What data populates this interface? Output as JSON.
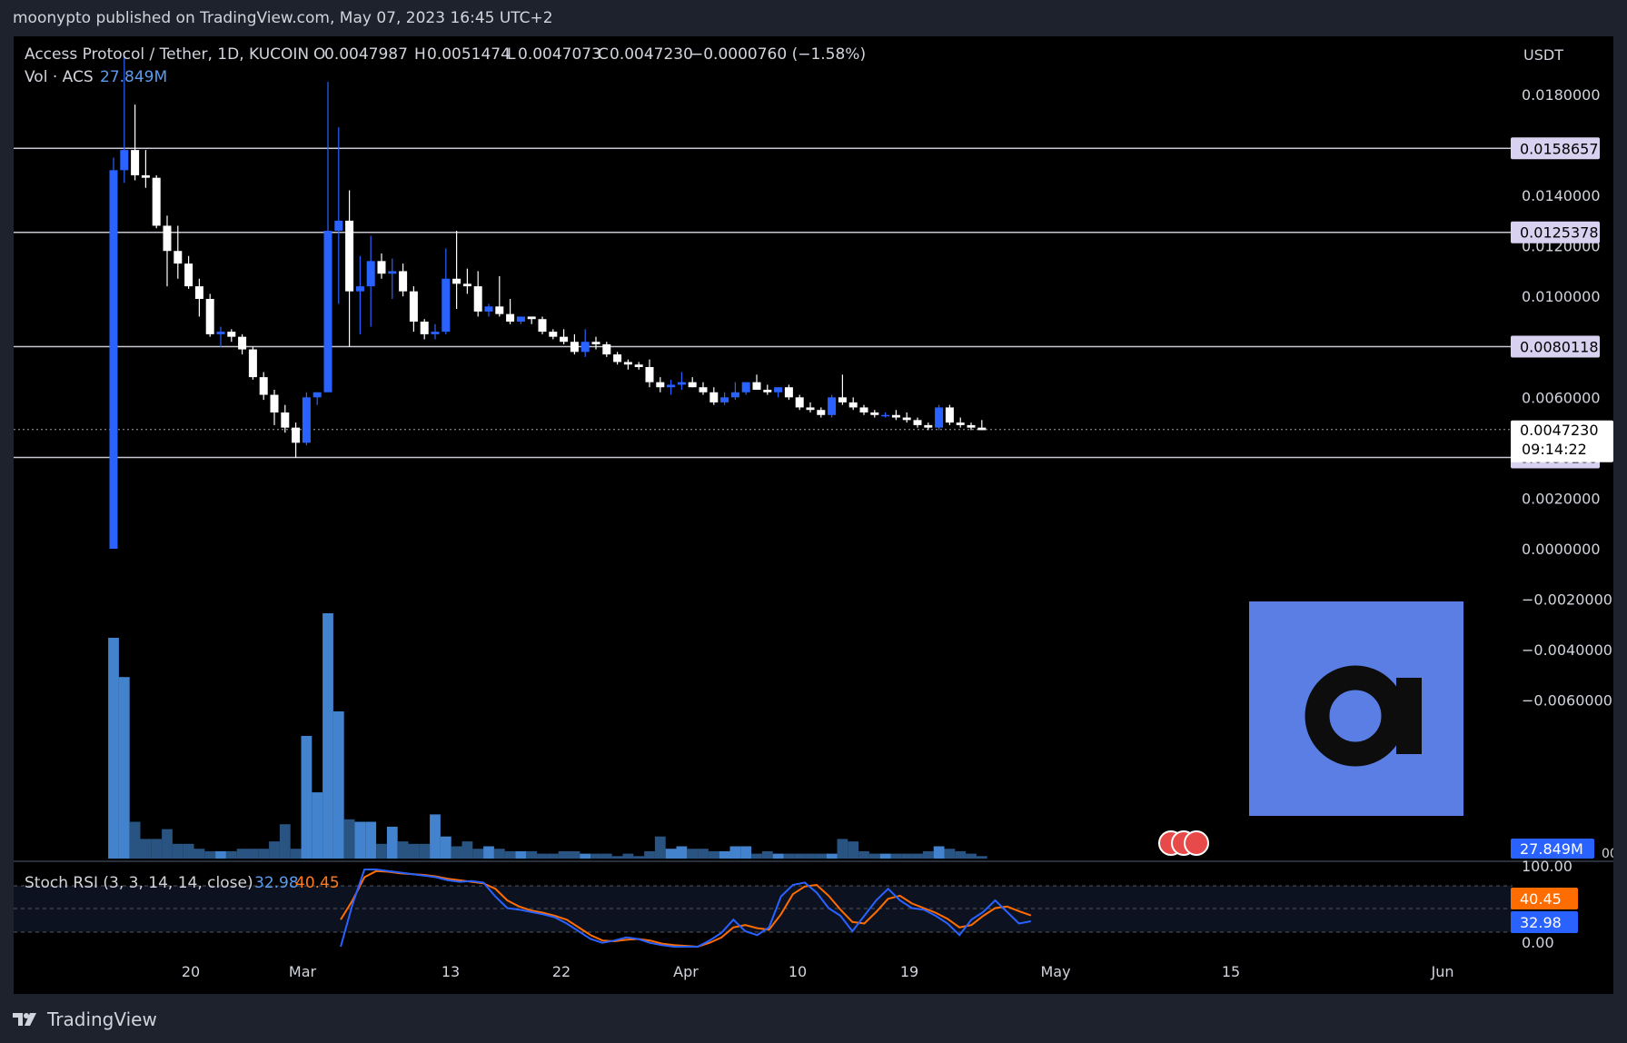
{
  "header": {
    "publisher_line": "moonypto published on TradingView.com, May 07, 2023 16:45 UTC+2"
  },
  "legend": {
    "symbol": "Access Protocol / Tether, 1D, KUCOIN",
    "o_label": "O",
    "o": "0.0047987",
    "h_label": "H",
    "h": "0.0051474",
    "l_label": "L",
    "l": "0.0047073",
    "c_label": "C",
    "c": "0.0047230",
    "change": "−0.0000760 (−1.58%)",
    "vol_label": "Vol · ACS",
    "vol_value": "27.849M"
  },
  "currency": "USDT",
  "price_axis": {
    "ticks": [
      "0.0180000",
      "0.0140000",
      "0.0120000",
      "0.0100000",
      "0.0060000",
      "0.0020000",
      "0.0000000",
      "−0.0020000",
      "−0.0040000",
      "−0.0060000"
    ],
    "tick_values": [
      0.018,
      0.014,
      0.012,
      0.01,
      0.006,
      0.002,
      0.0,
      -0.002,
      -0.004,
      -0.006
    ]
  },
  "hlines": [
    {
      "label": "0.0158657",
      "value": 0.0158657
    },
    {
      "label": "0.0125378",
      "value": 0.0125378
    },
    {
      "label": "0.0080118",
      "value": 0.0080118
    },
    {
      "label": "0.0036189",
      "value": 0.0036189
    }
  ],
  "last_price": {
    "label": "0.0047230",
    "value": 0.004723,
    "countdown": "09:14:22"
  },
  "volume_badge": "27.849M",
  "volume_axis_partial": "00",
  "stoch": {
    "title": "Stoch RSI (3, 3, 14, 14, close)",
    "k_label": "32.98",
    "d_label": "40.45",
    "ticks": [
      "100.00",
      "0.00"
    ],
    "k_color": "#2962ff",
    "d_color": "#ff6d00"
  },
  "time_axis": [
    "20",
    "Mar",
    "13",
    "22",
    "Apr",
    "10",
    "19",
    "May",
    "15",
    "Jun"
  ],
  "footer": {
    "brand": "TradingView"
  },
  "colors": {
    "up": "#2962ff",
    "down": "#ffffff",
    "vol_up": "#4a90e2",
    "vol_down": "#2e5c8e",
    "logo_bg": "#5b7ee5"
  },
  "chart_data": {
    "type": "candlestick",
    "title": "Access Protocol / Tether, 1D, KUCOIN",
    "xlabel": "",
    "ylabel": "USDT",
    "ylim": [
      -0.0075,
      0.0195
    ],
    "first_date": "2023-02-15",
    "candles": [
      {
        "o": 0.0,
        "h": 0.0155,
        "l": 0.0,
        "c": 0.015
      },
      {
        "o": 0.015,
        "h": 0.0195,
        "l": 0.0145,
        "c": 0.0158
      },
      {
        "o": 0.0158,
        "h": 0.0176,
        "l": 0.0146,
        "c": 0.0148
      },
      {
        "o": 0.0148,
        "h": 0.0158,
        "l": 0.0143,
        "c": 0.0147
      },
      {
        "o": 0.0147,
        "h": 0.0148,
        "l": 0.0127,
        "c": 0.0128
      },
      {
        "o": 0.0128,
        "h": 0.0132,
        "l": 0.0104,
        "c": 0.0118
      },
      {
        "o": 0.0118,
        "h": 0.0128,
        "l": 0.0107,
        "c": 0.0113
      },
      {
        "o": 0.0113,
        "h": 0.0116,
        "l": 0.0103,
        "c": 0.0104
      },
      {
        "o": 0.0104,
        "h": 0.0107,
        "l": 0.0092,
        "c": 0.0099
      },
      {
        "o": 0.0099,
        "h": 0.0101,
        "l": 0.0084,
        "c": 0.0085
      },
      {
        "o": 0.0085,
        "h": 0.0088,
        "l": 0.008,
        "c": 0.0086
      },
      {
        "o": 0.0086,
        "h": 0.0087,
        "l": 0.0082,
        "c": 0.0084
      },
      {
        "o": 0.0084,
        "h": 0.0085,
        "l": 0.0077,
        "c": 0.0079
      },
      {
        "o": 0.0079,
        "h": 0.008,
        "l": 0.0067,
        "c": 0.0068
      },
      {
        "o": 0.0068,
        "h": 0.007,
        "l": 0.0059,
        "c": 0.0061
      },
      {
        "o": 0.0061,
        "h": 0.0063,
        "l": 0.0049,
        "c": 0.0054
      },
      {
        "o": 0.0054,
        "h": 0.0057,
        "l": 0.0046,
        "c": 0.0048
      },
      {
        "o": 0.0048,
        "h": 0.005,
        "l": 0.0036,
        "c": 0.0042
      },
      {
        "o": 0.0042,
        "h": 0.0062,
        "l": 0.0041,
        "c": 0.006
      },
      {
        "o": 0.006,
        "h": 0.0062,
        "l": 0.0057,
        "c": 0.0062
      },
      {
        "o": 0.0062,
        "h": 0.0185,
        "l": 0.0062,
        "c": 0.0126
      },
      {
        "o": 0.0126,
        "h": 0.0167,
        "l": 0.0097,
        "c": 0.013
      },
      {
        "o": 0.013,
        "h": 0.0142,
        "l": 0.008,
        "c": 0.0102
      },
      {
        "o": 0.0102,
        "h": 0.0116,
        "l": 0.0085,
        "c": 0.0104
      },
      {
        "o": 0.0104,
        "h": 0.0124,
        "l": 0.0088,
        "c": 0.0114
      },
      {
        "o": 0.0114,
        "h": 0.0117,
        "l": 0.0107,
        "c": 0.0109
      },
      {
        "o": 0.0109,
        "h": 0.0115,
        "l": 0.0099,
        "c": 0.011
      },
      {
        "o": 0.011,
        "h": 0.0113,
        "l": 0.01,
        "c": 0.0102
      },
      {
        "o": 0.0102,
        "h": 0.0104,
        "l": 0.0086,
        "c": 0.009
      },
      {
        "o": 0.009,
        "h": 0.0091,
        "l": 0.0083,
        "c": 0.0085
      },
      {
        "o": 0.0085,
        "h": 0.0089,
        "l": 0.0083,
        "c": 0.0086
      },
      {
        "o": 0.0086,
        "h": 0.0119,
        "l": 0.0085,
        "c": 0.0107
      },
      {
        "o": 0.0107,
        "h": 0.0126,
        "l": 0.0095,
        "c": 0.0105
      },
      {
        "o": 0.0105,
        "h": 0.0111,
        "l": 0.0101,
        "c": 0.0104
      },
      {
        "o": 0.0104,
        "h": 0.011,
        "l": 0.0092,
        "c": 0.0094
      },
      {
        "o": 0.0094,
        "h": 0.0097,
        "l": 0.0092,
        "c": 0.0096
      },
      {
        "o": 0.0096,
        "h": 0.0108,
        "l": 0.0092,
        "c": 0.0093
      },
      {
        "o": 0.0093,
        "h": 0.0099,
        "l": 0.0089,
        "c": 0.009
      },
      {
        "o": 0.009,
        "h": 0.0092,
        "l": 0.0089,
        "c": 0.0092
      },
      {
        "o": 0.0092,
        "h": 0.0092,
        "l": 0.0089,
        "c": 0.0091
      },
      {
        "o": 0.0091,
        "h": 0.0092,
        "l": 0.0085,
        "c": 0.0086
      },
      {
        "o": 0.0086,
        "h": 0.0087,
        "l": 0.0083,
        "c": 0.0084
      },
      {
        "o": 0.0084,
        "h": 0.0087,
        "l": 0.0081,
        "c": 0.0082
      },
      {
        "o": 0.0082,
        "h": 0.0085,
        "l": 0.0077,
        "c": 0.0078
      },
      {
        "o": 0.0078,
        "h": 0.0087,
        "l": 0.0076,
        "c": 0.0082
      },
      {
        "o": 0.0082,
        "h": 0.0084,
        "l": 0.0079,
        "c": 0.0081
      },
      {
        "o": 0.0081,
        "h": 0.0082,
        "l": 0.0076,
        "c": 0.0077
      },
      {
        "o": 0.0077,
        "h": 0.0078,
        "l": 0.0073,
        "c": 0.0074
      },
      {
        "o": 0.0074,
        "h": 0.0075,
        "l": 0.0071,
        "c": 0.0073
      },
      {
        "o": 0.0073,
        "h": 0.0074,
        "l": 0.0071,
        "c": 0.0072
      },
      {
        "o": 0.0072,
        "h": 0.0075,
        "l": 0.0064,
        "c": 0.0066
      },
      {
        "o": 0.0066,
        "h": 0.0068,
        "l": 0.0062,
        "c": 0.0064
      },
      {
        "o": 0.0064,
        "h": 0.0067,
        "l": 0.0061,
        "c": 0.0065
      },
      {
        "o": 0.0065,
        "h": 0.007,
        "l": 0.0063,
        "c": 0.0066
      },
      {
        "o": 0.0066,
        "h": 0.0068,
        "l": 0.0064,
        "c": 0.0064
      },
      {
        "o": 0.0064,
        "h": 0.0066,
        "l": 0.0061,
        "c": 0.0062
      },
      {
        "o": 0.0062,
        "h": 0.0064,
        "l": 0.0057,
        "c": 0.0058
      },
      {
        "o": 0.0058,
        "h": 0.0062,
        "l": 0.0057,
        "c": 0.006
      },
      {
        "o": 0.006,
        "h": 0.0066,
        "l": 0.0059,
        "c": 0.0062
      },
      {
        "o": 0.0062,
        "h": 0.0066,
        "l": 0.0061,
        "c": 0.0066
      },
      {
        "o": 0.0066,
        "h": 0.0069,
        "l": 0.0063,
        "c": 0.0063
      },
      {
        "o": 0.0063,
        "h": 0.0065,
        "l": 0.0061,
        "c": 0.0062
      },
      {
        "o": 0.0062,
        "h": 0.0064,
        "l": 0.006,
        "c": 0.0064
      },
      {
        "o": 0.0064,
        "h": 0.0065,
        "l": 0.0059,
        "c": 0.006
      },
      {
        "o": 0.006,
        "h": 0.0061,
        "l": 0.0055,
        "c": 0.0056
      },
      {
        "o": 0.0056,
        "h": 0.0058,
        "l": 0.0054,
        "c": 0.0055
      },
      {
        "o": 0.0055,
        "h": 0.0056,
        "l": 0.0052,
        "c": 0.0053
      },
      {
        "o": 0.0053,
        "h": 0.0061,
        "l": 0.0052,
        "c": 0.006
      },
      {
        "o": 0.006,
        "h": 0.0069,
        "l": 0.0057,
        "c": 0.0058
      },
      {
        "o": 0.0058,
        "h": 0.006,
        "l": 0.0055,
        "c": 0.0056
      },
      {
        "o": 0.0056,
        "h": 0.0057,
        "l": 0.0053,
        "c": 0.0054
      },
      {
        "o": 0.0054,
        "h": 0.0055,
        "l": 0.0052,
        "c": 0.0053
      },
      {
        "o": 0.0053,
        "h": 0.0054,
        "l": 0.0052,
        "c": 0.0053
      },
      {
        "o": 0.0053,
        "h": 0.0055,
        "l": 0.0051,
        "c": 0.0052
      },
      {
        "o": 0.0052,
        "h": 0.0054,
        "l": 0.005,
        "c": 0.0051
      },
      {
        "o": 0.0051,
        "h": 0.0052,
        "l": 0.0048,
        "c": 0.0049
      },
      {
        "o": 0.0049,
        "h": 0.005,
        "l": 0.0047,
        "c": 0.0048
      },
      {
        "o": 0.0048,
        "h": 0.0057,
        "l": 0.0047,
        "c": 0.0056
      },
      {
        "o": 0.0056,
        "h": 0.0057,
        "l": 0.0049,
        "c": 0.005
      },
      {
        "o": 0.005,
        "h": 0.0052,
        "l": 0.0048,
        "c": 0.0049
      },
      {
        "o": 0.0049,
        "h": 0.005,
        "l": 0.0047,
        "c": 0.0048
      },
      {
        "o": 0.0048,
        "h": 0.0051,
        "l": 0.0047,
        "c": 0.0047
      }
    ],
    "volume_rel": [
      0.9,
      0.74,
      0.15,
      0.08,
      0.08,
      0.12,
      0.06,
      0.06,
      0.04,
      0.03,
      0.03,
      0.03,
      0.04,
      0.04,
      0.04,
      0.07,
      0.14,
      0.04,
      0.5,
      0.27,
      1.0,
      0.6,
      0.16,
      0.15,
      0.15,
      0.06,
      0.13,
      0.07,
      0.06,
      0.06,
      0.18,
      0.09,
      0.05,
      0.07,
      0.04,
      0.05,
      0.04,
      0.03,
      0.03,
      0.03,
      0.02,
      0.02,
      0.03,
      0.03,
      0.02,
      0.02,
      0.02,
      0.01,
      0.02,
      0.01,
      0.03,
      0.09,
      0.04,
      0.05,
      0.04,
      0.04,
      0.03,
      0.03,
      0.05,
      0.05,
      0.02,
      0.03,
      0.02,
      0.02,
      0.02,
      0.02,
      0.02,
      0.02,
      0.08,
      0.07,
      0.03,
      0.02,
      0.02,
      0.02,
      0.02,
      0.02,
      0.03,
      0.05,
      0.04,
      0.03,
      0.02,
      0.01
    ],
    "stoch_k": [
      0,
      55,
      100,
      100,
      98,
      96,
      94,
      92,
      90,
      86,
      84,
      85,
      83,
      65,
      50,
      48,
      45,
      42,
      38,
      30,
      20,
      10,
      5,
      8,
      12,
      10,
      5,
      2,
      0,
      0,
      0,
      8,
      18,
      35,
      20,
      15,
      25,
      65,
      80,
      83,
      70,
      50,
      40,
      20,
      40,
      60,
      75,
      60,
      50,
      48,
      40,
      30,
      15,
      35,
      45,
      60,
      45,
      30,
      32.98
    ],
    "stoch_d": [
      35,
      60,
      90,
      98,
      97,
      95,
      94,
      93,
      91,
      88,
      86,
      84,
      82,
      75,
      60,
      52,
      47,
      44,
      40,
      35,
      25,
      15,
      8,
      7,
      9,
      10,
      8,
      4,
      2,
      1,
      0,
      5,
      12,
      25,
      28,
      24,
      22,
      42,
      68,
      78,
      80,
      66,
      48,
      32,
      30,
      45,
      62,
      66,
      56,
      50,
      44,
      36,
      25,
      28,
      40,
      50,
      52,
      46,
      40.45
    ]
  }
}
